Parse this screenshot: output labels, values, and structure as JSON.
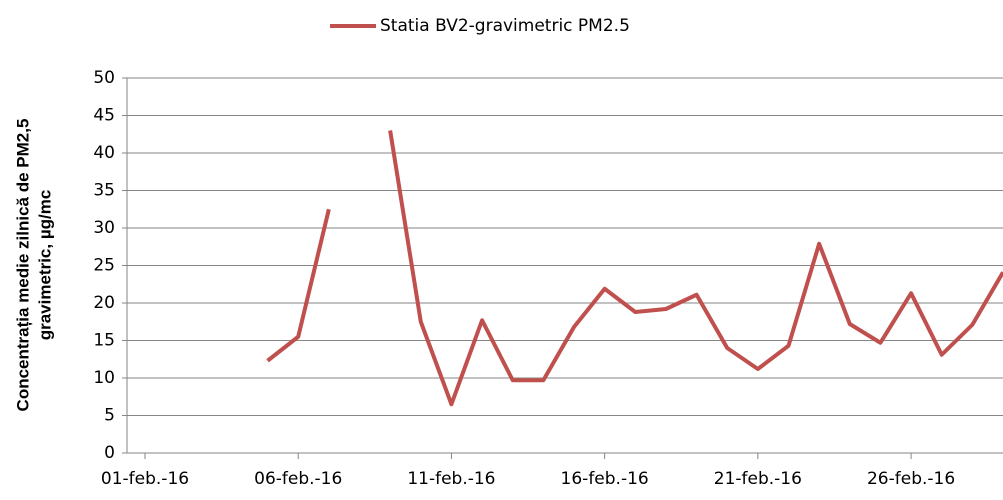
{
  "chart_data": {
    "type": "line",
    "ylabel": [
      "Concentrația medie zilnică de PM2,5",
      "gravimetric, µg/mc"
    ],
    "categories": [
      "01-feb.-16",
      null,
      null,
      null,
      null,
      "06-feb.-16",
      null,
      null,
      null,
      null,
      "11-feb.-16",
      null,
      null,
      null,
      null,
      "16-feb.-16",
      null,
      null,
      null,
      null,
      "21-feb.-16",
      null,
      null,
      null,
      null,
      "26-feb.-16",
      null,
      null,
      null
    ],
    "series": [
      {
        "name": "Statia BV2-gravimetric PM2.5",
        "color": "#c0504d",
        "values": [
          null,
          null,
          null,
          null,
          12.3,
          15.5,
          32.5,
          null,
          43,
          17.5,
          6.5,
          17.7,
          9.7,
          9.7,
          16.8,
          21.9,
          18.8,
          19.2,
          21.1,
          14,
          11.2,
          14.3,
          27.9,
          17.2,
          14.7,
          21.3,
          13.1,
          17.1,
          24.1
        ]
      }
    ],
    "ylim": [
      0,
      50
    ],
    "yticks": [
      0,
      5,
      10,
      15,
      20,
      25,
      30,
      35,
      40,
      45,
      50
    ],
    "grid": true,
    "legend": "top"
  }
}
